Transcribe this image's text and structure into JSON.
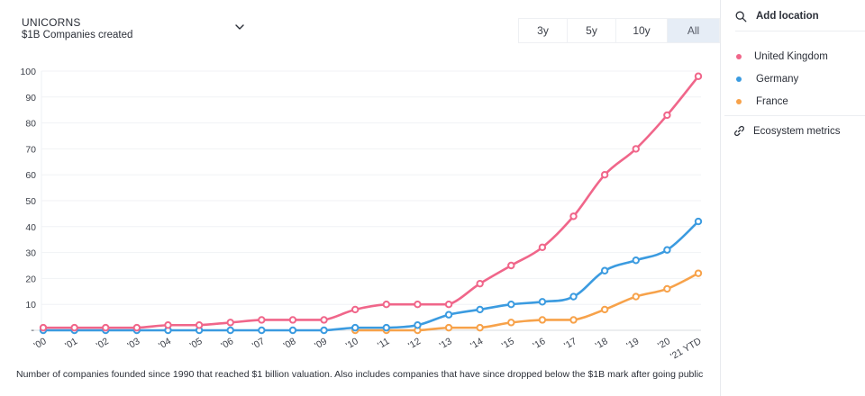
{
  "header": {
    "title": "UNICORNS",
    "subtitle": "$1B Companies created"
  },
  "range_buttons": [
    {
      "label": "3y",
      "active": false
    },
    {
      "label": "5y",
      "active": false
    },
    {
      "label": "10y",
      "active": false
    },
    {
      "label": "All",
      "active": true
    }
  ],
  "footnote": "Number of companies founded since 1990 that reached $1 billion valuation. Also includes companies that have since dropped below the $1B mark after going public",
  "sidebar": {
    "add_location_label": "Add location",
    "legend": [
      {
        "label": "United Kingdom",
        "color": "#f0668a"
      },
      {
        "label": "Germany",
        "color": "#3b9be0"
      },
      {
        "label": "France",
        "color": "#f7a24a"
      }
    ],
    "ecosystem_label": "Ecosystem metrics"
  },
  "chart_data": {
    "type": "line",
    "title": "UNICORNS — $1B Companies created",
    "xlabel": "",
    "ylabel": "",
    "x": [
      "'00",
      "'01",
      "'02",
      "'03",
      "'04",
      "'05",
      "'06",
      "'07",
      "'08",
      "'09",
      "'10",
      "'11",
      "'12",
      "'13",
      "'14",
      "'15",
      "'16",
      "'17",
      "'18",
      "'19",
      "'20",
      "'21 YTD"
    ],
    "ylim": [
      0,
      100
    ],
    "yticks": [
      10,
      20,
      30,
      40,
      50,
      60,
      70,
      80,
      90,
      100
    ],
    "grid": true,
    "legend_position": "right-sidebar",
    "series": [
      {
        "name": "United Kingdom",
        "color": "#f0668a",
        "values": [
          1,
          1,
          1,
          1,
          2,
          2,
          3,
          4,
          4,
          4,
          8,
          10,
          10,
          10,
          18,
          25,
          32,
          44,
          60,
          70,
          83,
          98
        ]
      },
      {
        "name": "Germany",
        "color": "#3b9be0",
        "values": [
          0,
          0,
          0,
          0,
          0,
          0,
          0,
          0,
          0,
          0,
          1,
          1,
          2,
          6,
          8,
          10,
          11,
          13,
          23,
          27,
          31,
          42
        ]
      },
      {
        "name": "France",
        "color": "#f7a24a",
        "values": [
          null,
          null,
          null,
          null,
          null,
          null,
          null,
          null,
          null,
          null,
          0,
          0,
          0,
          1,
          1,
          3,
          4,
          4,
          8,
          13,
          16,
          22
        ]
      }
    ]
  }
}
